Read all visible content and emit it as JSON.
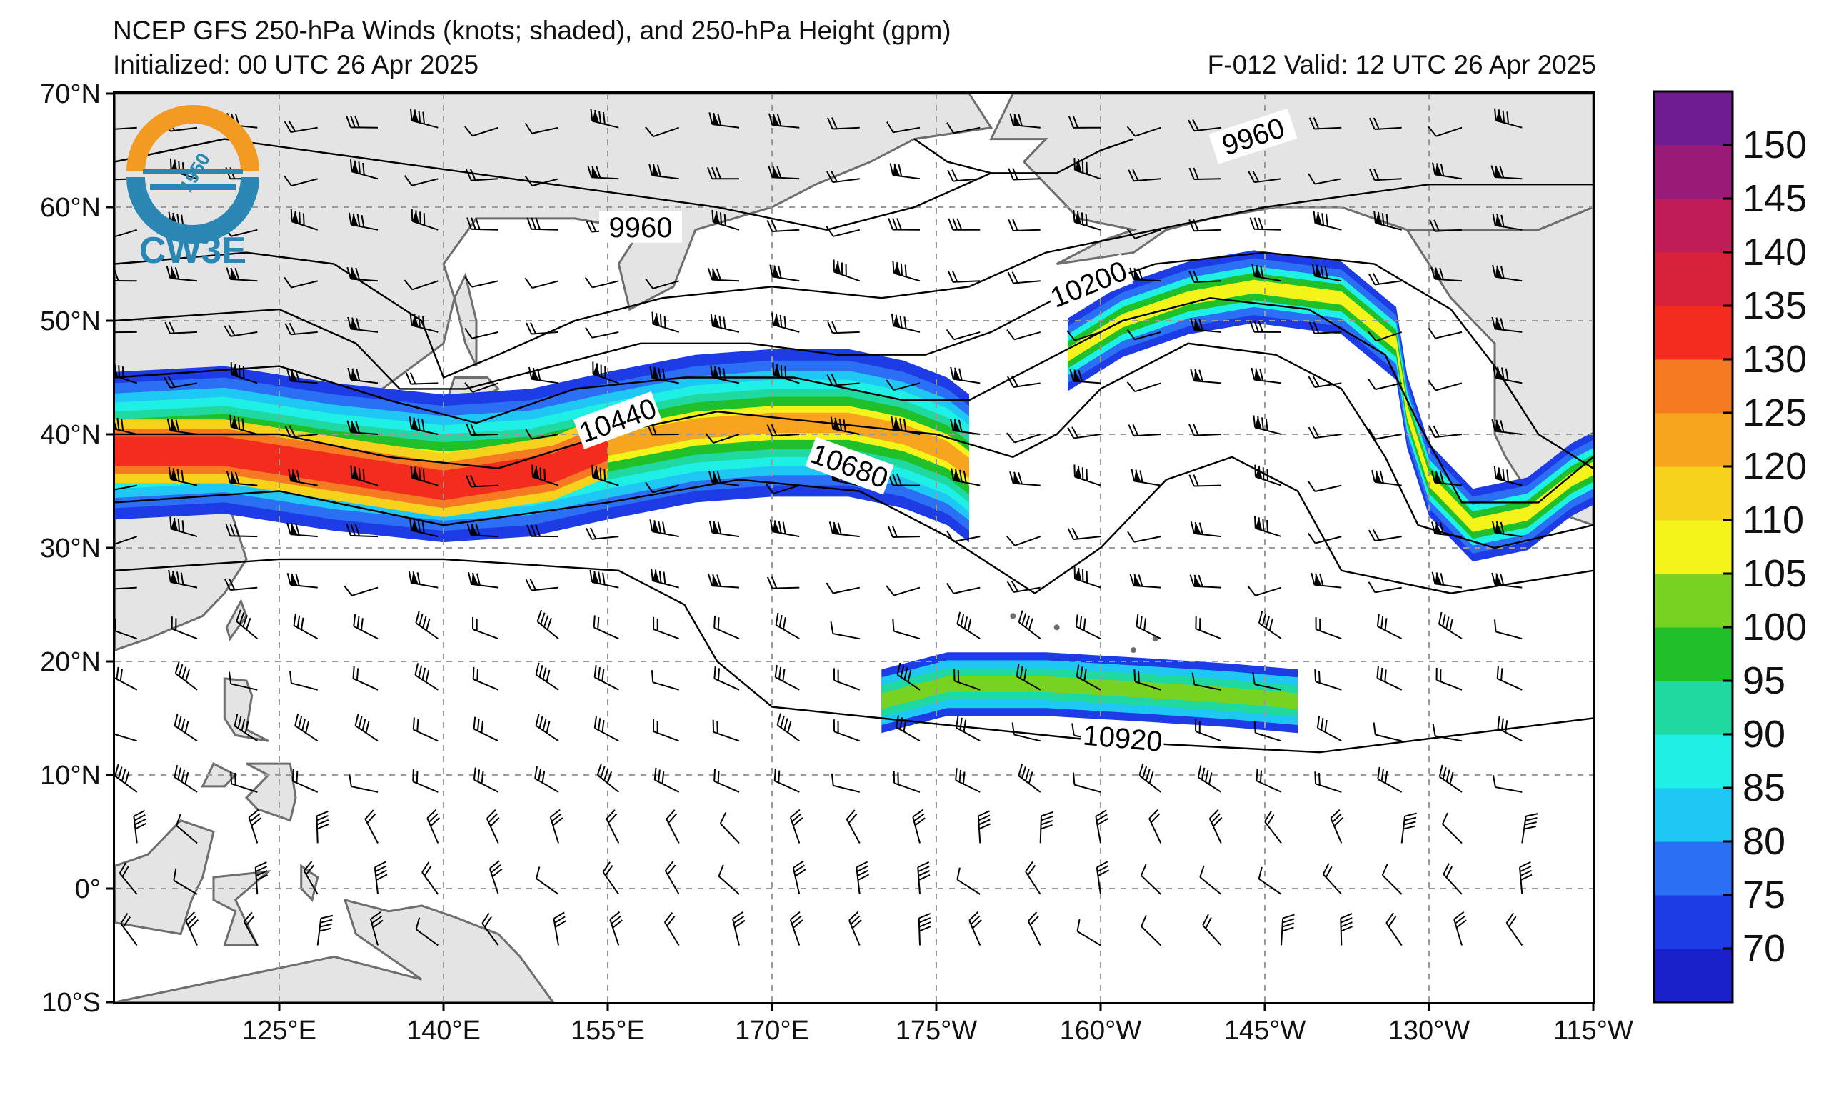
{
  "header": {
    "title": "NCEP GFS 250-hPa Winds (knots; shaded), and 250-hPa Height (gpm)",
    "initialized": "Initialized: 00 UTC 26 Apr 2025",
    "valid": "F-012  Valid: 12 UTC 26 Apr 2025"
  },
  "logo": {
    "text": "CW3E",
    "badge": "1950"
  },
  "map": {
    "lat_labels": [
      "70°N",
      "60°N",
      "50°N",
      "40°N",
      "30°N",
      "20°N",
      "10°N",
      "0°",
      "10°S"
    ],
    "lon_labels": [
      "125°E",
      "140°E",
      "155°E",
      "170°E",
      "175°W",
      "160°W",
      "145°W",
      "130°W",
      "115°W"
    ],
    "contour_labels": [
      "9960",
      "9960",
      "10200",
      "10440",
      "10680",
      "10920"
    ],
    "colors": {
      "land": "#e4e4e4",
      "coast": "#6e6e6e",
      "grid": "#9a9a9a"
    }
  },
  "colorbar": {
    "labels": [
      "150",
      "145",
      "140",
      "135",
      "130",
      "125",
      "120",
      "110",
      "105",
      "100",
      "95",
      "90",
      "85",
      "80",
      "75",
      "70"
    ],
    "colors": [
      "#1b21c8",
      "#1e3ce6",
      "#2a6ff4",
      "#1fc8f4",
      "#1ef0e6",
      "#1fd9a0",
      "#20c02a",
      "#78d222",
      "#f4f41a",
      "#f7d21c",
      "#f7a41e",
      "#f67a22",
      "#f42c1e",
      "#d8213a",
      "#c01c58",
      "#9a1a78",
      "#6f1c92"
    ]
  }
}
